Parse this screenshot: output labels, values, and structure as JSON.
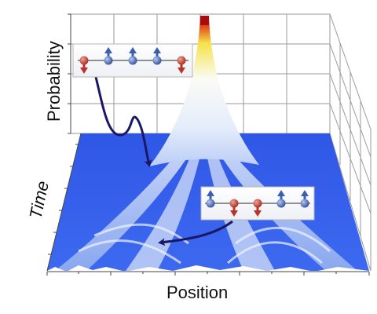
{
  "axes": {
    "probability_label": "Probability",
    "time_label": "Time",
    "position_label": "Position"
  },
  "inset_top": {
    "spins": [
      "down",
      "up",
      "up",
      "up",
      "down"
    ]
  },
  "inset_bottom": {
    "spins": [
      "up",
      "down",
      "down",
      "up",
      "up"
    ]
  },
  "colors": {
    "floor_blue": "#3b63e8",
    "peak_red": "#b30d0d",
    "peak_yellow": "#f2e040",
    "spin_up": "#3a5fb0",
    "spin_down": "#b8342a",
    "arrow": "#1a1866"
  }
}
